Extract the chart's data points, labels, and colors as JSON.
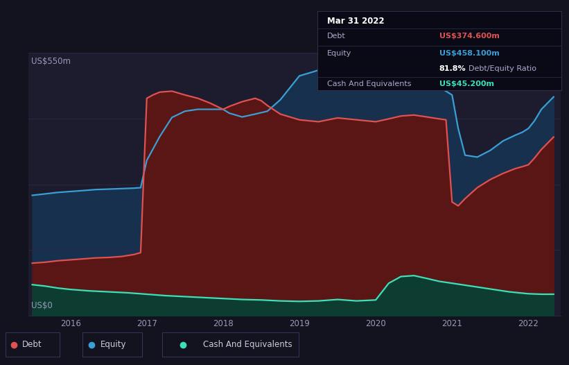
{
  "bg_color": "#13131f",
  "plot_bg_color": "#1c1c2e",
  "grid_color": "#2a2a45",
  "ylabel_top": "US$550m",
  "ylabel_bottom": "US$0",
  "xlim": [
    2015.45,
    2022.42
  ],
  "ylim": [
    0,
    550
  ],
  "ytick_positions": [
    0,
    137.5,
    275,
    412.5,
    550
  ],
  "xtick_labels": [
    "2016",
    "2017",
    "2018",
    "2019",
    "2020",
    "2021",
    "2022"
  ],
  "xtick_positions": [
    2016,
    2017,
    2018,
    2019,
    2020,
    2021,
    2022
  ],
  "debt_color": "#e05252",
  "equity_color": "#3a9fd5",
  "cash_color": "#3de0b8",
  "debt_fill_color": "#5a1515",
  "equity_fill_color": "#17304d",
  "cash_fill_color": "#0d3d30",
  "debt_x": [
    2015.5,
    2015.67,
    2015.83,
    2016.0,
    2016.17,
    2016.33,
    2016.5,
    2016.67,
    2016.83,
    2016.92,
    2017.0,
    2017.08,
    2017.17,
    2017.33,
    2017.5,
    2017.67,
    2017.83,
    2018.0,
    2018.08,
    2018.25,
    2018.42,
    2018.5,
    2018.58,
    2018.75,
    2019.0,
    2019.25,
    2019.5,
    2019.75,
    2020.0,
    2020.17,
    2020.33,
    2020.5,
    2020.67,
    2020.83,
    2020.92,
    2021.0,
    2021.08,
    2021.17,
    2021.33,
    2021.5,
    2021.67,
    2021.83,
    2021.92,
    2022.0,
    2022.08,
    2022.17,
    2022.33
  ],
  "debt_y": [
    110,
    112,
    115,
    117,
    119,
    121,
    122,
    124,
    128,
    132,
    455,
    462,
    468,
    470,
    462,
    455,
    445,
    432,
    438,
    448,
    455,
    450,
    440,
    422,
    410,
    406,
    414,
    410,
    406,
    412,
    418,
    420,
    416,
    412,
    410,
    238,
    230,
    245,
    268,
    285,
    298,
    308,
    312,
    316,
    330,
    348,
    374
  ],
  "equity_x": [
    2015.5,
    2015.67,
    2015.83,
    2016.0,
    2016.17,
    2016.33,
    2016.5,
    2016.67,
    2016.83,
    2016.92,
    2017.0,
    2017.17,
    2017.33,
    2017.5,
    2017.67,
    2017.83,
    2018.0,
    2018.08,
    2018.25,
    2018.42,
    2018.58,
    2018.75,
    2019.0,
    2019.17,
    2019.33,
    2019.5,
    2019.67,
    2019.83,
    2020.0,
    2020.17,
    2020.33,
    2020.5,
    2020.67,
    2020.83,
    2020.92,
    2021.0,
    2021.08,
    2021.17,
    2021.33,
    2021.5,
    2021.67,
    2021.83,
    2021.92,
    2022.0,
    2022.08,
    2022.17,
    2022.33
  ],
  "equity_y": [
    252,
    255,
    258,
    260,
    262,
    264,
    265,
    266,
    267,
    268,
    325,
    375,
    415,
    428,
    432,
    432,
    432,
    424,
    416,
    422,
    428,
    452,
    502,
    510,
    518,
    518,
    512,
    508,
    510,
    506,
    502,
    498,
    488,
    478,
    470,
    462,
    392,
    336,
    332,
    346,
    366,
    378,
    384,
    392,
    408,
    432,
    458
  ],
  "cash_x": [
    2015.5,
    2015.67,
    2015.83,
    2016.0,
    2016.25,
    2016.5,
    2016.75,
    2017.0,
    2017.25,
    2017.5,
    2017.75,
    2018.0,
    2018.25,
    2018.5,
    2018.75,
    2019.0,
    2019.25,
    2019.5,
    2019.75,
    2020.0,
    2020.17,
    2020.33,
    2020.5,
    2020.67,
    2020.83,
    2021.0,
    2021.25,
    2021.5,
    2021.75,
    2022.0,
    2022.17,
    2022.33
  ],
  "cash_y": [
    65,
    62,
    58,
    55,
    52,
    50,
    48,
    45,
    42,
    40,
    38,
    36,
    34,
    33,
    31,
    30,
    31,
    34,
    31,
    33,
    68,
    82,
    84,
    78,
    72,
    68,
    62,
    56,
    50,
    46,
    45,
    45
  ],
  "tooltip_date": "Mar 31 2022",
  "tooltip_debt_label": "Debt",
  "tooltip_debt_value": "US$374.600m",
  "tooltip_equity_label": "Equity",
  "tooltip_equity_value": "US$458.100m",
  "tooltip_ratio": "81.8%",
  "tooltip_ratio_label": "Debt/Equity Ratio",
  "tooltip_cash_label": "Cash And Equivalents",
  "tooltip_cash_value": "US$45.200m",
  "legend_labels": [
    "Debt",
    "Equity",
    "Cash And Equivalents"
  ],
  "legend_colors": [
    "#e05252",
    "#3a9fd5",
    "#3de0b8"
  ]
}
